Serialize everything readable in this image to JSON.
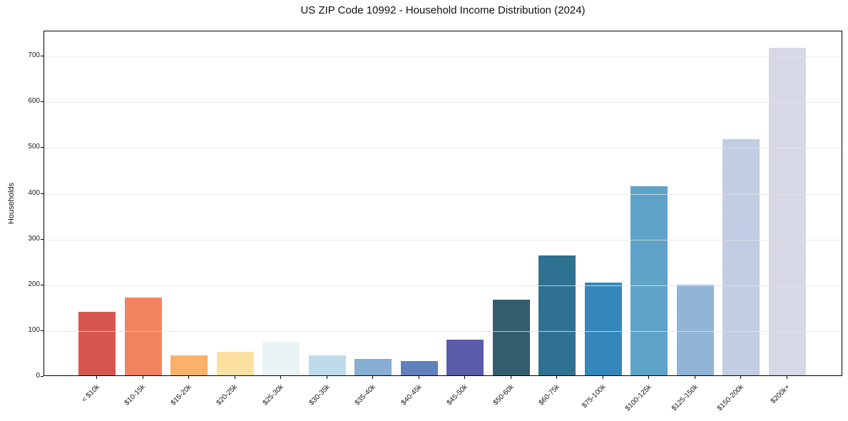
{
  "chart_data": {
    "type": "bar",
    "title": "US ZIP Code 10992 - Household Income Distribution (2024)",
    "xlabel": "",
    "ylabel": "Households",
    "categories": [
      "< $10k",
      "$10-15k",
      "$15-20k",
      "$20-25k",
      "$25-30k",
      "$30-35k",
      "$35-40k",
      "$40-45k",
      "$45-50k",
      "$50-60k",
      "$60-75k",
      "$75-100k",
      "$100-125k",
      "$125-150k",
      "$150-200k",
      "$200k+"
    ],
    "values": [
      139,
      170,
      44,
      51,
      74,
      43,
      36,
      32,
      78,
      166,
      262,
      203,
      413,
      198,
      516,
      716
    ],
    "bar_colors": [
      "#d6554e",
      "#f2835f",
      "#fab169",
      "#fde1a0",
      "#e9f3f6",
      "#bddbea",
      "#87aed3",
      "#6080bb",
      "#5a5ca9",
      "#335d6f",
      "#2f7191",
      "#3487bb",
      "#5ea4c8",
      "#8fb4d5",
      "#c0cde3",
      "#d7d8e5"
    ],
    "yticks": [
      0,
      100,
      200,
      300,
      400,
      500,
      600,
      700
    ],
    "ylim": [
      0,
      755
    ],
    "grid": "horizontal light-gray lines, faintly visible over bars",
    "legend": "none",
    "x_tick_rotation_deg": 45
  }
}
